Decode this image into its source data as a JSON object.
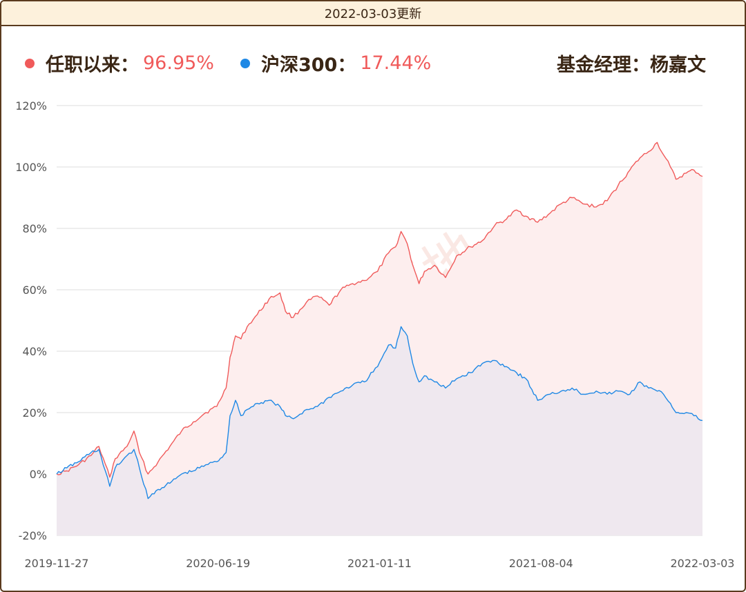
{
  "header": {
    "update_text": "2022-03-03更新"
  },
  "legend": {
    "fund_label": "任职以来：",
    "fund_value": "96.95%",
    "index_label": "沪深300：",
    "index_value": "17.44%",
    "manager_text": "基金经理：杨嘉文"
  },
  "watermark": "搞钱基地",
  "colors": {
    "fund": "#f05a5a",
    "index": "#1e88e5",
    "fund_fill": "#fdeeee",
    "index_fill": "#ece6ef",
    "grid": "#dddddd"
  },
  "chart_data": {
    "type": "line",
    "x_tick_labels": [
      "2019-11-27",
      "2020-06-19",
      "2021-01-11",
      "2021-08-04",
      "2022-03-03"
    ],
    "y_tick_labels": [
      "120%",
      "100%",
      "80%",
      "60%",
      "40%",
      "20%",
      "0%",
      "-20%"
    ],
    "ylim": [
      -20,
      120
    ],
    "x_domain": [
      "2019-11-27",
      "2022-03-03"
    ],
    "series": [
      {
        "name": "任职以来",
        "points": [
          [
            "2019-11-27",
            0
          ],
          [
            "2019-12-10",
            1
          ],
          [
            "2019-12-25",
            3
          ],
          [
            "2020-01-10",
            6
          ],
          [
            "2020-01-20",
            9
          ],
          [
            "2020-02-03",
            -1
          ],
          [
            "2020-02-10",
            5
          ],
          [
            "2020-02-25",
            9
          ],
          [
            "2020-03-05",
            14
          ],
          [
            "2020-03-12",
            7
          ],
          [
            "2020-03-23",
            0
          ],
          [
            "2020-04-05",
            4
          ],
          [
            "2020-04-20",
            9
          ],
          [
            "2020-05-05",
            14
          ],
          [
            "2020-05-20",
            17
          ],
          [
            "2020-06-05",
            20
          ],
          [
            "2020-06-19",
            22
          ],
          [
            "2020-07-01",
            28
          ],
          [
            "2020-07-06",
            38
          ],
          [
            "2020-07-13",
            45
          ],
          [
            "2020-07-20",
            44
          ],
          [
            "2020-07-28",
            48
          ],
          [
            "2020-08-10",
            52
          ],
          [
            "2020-08-25",
            57
          ],
          [
            "2020-09-08",
            59
          ],
          [
            "2020-09-15",
            53
          ],
          [
            "2020-09-25",
            51
          ],
          [
            "2020-10-12",
            56
          ],
          [
            "2020-10-26",
            58
          ],
          [
            "2020-11-10",
            55
          ],
          [
            "2020-11-25",
            60
          ],
          [
            "2020-12-10",
            62
          ],
          [
            "2020-12-25",
            63
          ],
          [
            "2021-01-11",
            66
          ],
          [
            "2021-01-25",
            72
          ],
          [
            "2021-02-03",
            74
          ],
          [
            "2021-02-10",
            79
          ],
          [
            "2021-02-18",
            75
          ],
          [
            "2021-02-25",
            68
          ],
          [
            "2021-03-05",
            62
          ],
          [
            "2021-03-12",
            66
          ],
          [
            "2021-03-25",
            68
          ],
          [
            "2021-04-08",
            64
          ],
          [
            "2021-04-22",
            71
          ],
          [
            "2021-05-10",
            74
          ],
          [
            "2021-05-25",
            76
          ],
          [
            "2021-06-10",
            81
          ],
          [
            "2021-06-25",
            83
          ],
          [
            "2021-07-08",
            86
          ],
          [
            "2021-07-20",
            84
          ],
          [
            "2021-08-04",
            82
          ],
          [
            "2021-08-20",
            85
          ],
          [
            "2021-09-03",
            88
          ],
          [
            "2021-09-17",
            90
          ],
          [
            "2021-10-01",
            88
          ],
          [
            "2021-10-18",
            87
          ],
          [
            "2021-11-01",
            89
          ],
          [
            "2021-11-15",
            94
          ],
          [
            "2021-11-30",
            99
          ],
          [
            "2021-12-13",
            103
          ],
          [
            "2021-12-24",
            105
          ],
          [
            "2022-01-04",
            108
          ],
          [
            "2022-01-12",
            104
          ],
          [
            "2022-01-21",
            100
          ],
          [
            "2022-01-28",
            96
          ],
          [
            "2022-02-10",
            98
          ],
          [
            "2022-02-20",
            99
          ],
          [
            "2022-03-03",
            96.95
          ]
        ]
      },
      {
        "name": "沪深300",
        "points": [
          [
            "2019-11-27",
            0
          ],
          [
            "2019-12-10",
            2
          ],
          [
            "2019-12-25",
            4
          ],
          [
            "2020-01-10",
            7
          ],
          [
            "2020-01-20",
            8
          ],
          [
            "2020-02-03",
            -4
          ],
          [
            "2020-02-10",
            2
          ],
          [
            "2020-02-25",
            6
          ],
          [
            "2020-03-05",
            8
          ],
          [
            "2020-03-12",
            2
          ],
          [
            "2020-03-23",
            -8
          ],
          [
            "2020-04-05",
            -5
          ],
          [
            "2020-04-20",
            -3
          ],
          [
            "2020-05-05",
            0
          ],
          [
            "2020-05-20",
            1
          ],
          [
            "2020-06-05",
            3
          ],
          [
            "2020-06-19",
            4
          ],
          [
            "2020-07-01",
            7
          ],
          [
            "2020-07-06",
            19
          ],
          [
            "2020-07-13",
            24
          ],
          [
            "2020-07-20",
            19
          ],
          [
            "2020-07-28",
            21
          ],
          [
            "2020-08-10",
            23
          ],
          [
            "2020-08-25",
            24
          ],
          [
            "2020-09-08",
            22
          ],
          [
            "2020-09-15",
            19
          ],
          [
            "2020-09-25",
            18
          ],
          [
            "2020-10-12",
            21
          ],
          [
            "2020-10-26",
            22
          ],
          [
            "2020-11-10",
            25
          ],
          [
            "2020-11-25",
            27
          ],
          [
            "2020-12-10",
            29
          ],
          [
            "2020-12-25",
            30
          ],
          [
            "2021-01-11",
            35
          ],
          [
            "2021-01-25",
            42
          ],
          [
            "2021-02-03",
            41
          ],
          [
            "2021-02-10",
            48
          ],
          [
            "2021-02-18",
            45
          ],
          [
            "2021-02-25",
            36
          ],
          [
            "2021-03-05",
            30
          ],
          [
            "2021-03-12",
            32
          ],
          [
            "2021-03-25",
            30
          ],
          [
            "2021-04-08",
            28
          ],
          [
            "2021-04-22",
            31
          ],
          [
            "2021-05-10",
            33
          ],
          [
            "2021-05-25",
            36
          ],
          [
            "2021-06-10",
            37
          ],
          [
            "2021-06-25",
            35
          ],
          [
            "2021-07-08",
            33
          ],
          [
            "2021-07-20",
            31
          ],
          [
            "2021-08-04",
            24
          ],
          [
            "2021-08-20",
            26
          ],
          [
            "2021-09-03",
            27
          ],
          [
            "2021-09-17",
            28
          ],
          [
            "2021-10-01",
            26
          ],
          [
            "2021-10-18",
            27
          ],
          [
            "2021-11-01",
            26
          ],
          [
            "2021-11-15",
            27
          ],
          [
            "2021-11-30",
            26
          ],
          [
            "2021-12-13",
            30
          ],
          [
            "2021-12-24",
            28
          ],
          [
            "2022-01-04",
            27
          ],
          [
            "2022-01-12",
            26
          ],
          [
            "2022-01-21",
            23
          ],
          [
            "2022-01-28",
            20
          ],
          [
            "2022-02-10",
            20
          ],
          [
            "2022-02-20",
            19
          ],
          [
            "2022-03-03",
            17.44
          ]
        ]
      }
    ]
  }
}
